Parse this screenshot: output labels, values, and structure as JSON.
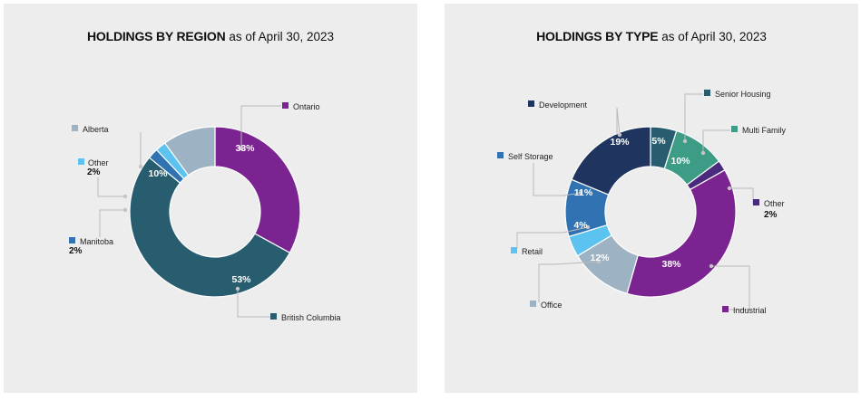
{
  "colors": {
    "navy": "#1f3560",
    "dark_teal": "#275d6e",
    "teal_green": "#3c9c86",
    "purple": "#7b2390",
    "dark_purple": "#4a2a7e",
    "medium_blue": "#3173b2",
    "light_blue": "#5cc2ef",
    "gray_blue": "#9db2c2",
    "panel_bg": "#eeeded"
  },
  "chart_data": [
    {
      "type": "pie",
      "variant": "donut",
      "title": "HOLDINGS BY REGION",
      "subtitle": "as of April 30, 2023",
      "start_at": "top, clockwise",
      "slices": [
        {
          "label": "Ontario",
          "value": 33,
          "pct_label": "33%",
          "color": "#7b2390",
          "label_in_slice": true
        },
        {
          "label": "British Columbia",
          "value": 53,
          "pct_label": "53%",
          "color": "#275d6e",
          "label_in_slice": true
        },
        {
          "label": "Manitoba",
          "value": 2,
          "pct_label": "2%",
          "color": "#3173b2",
          "label_in_slice": false
        },
        {
          "label": "Other",
          "value": 2,
          "pct_label": "2%",
          "color": "#5cc2ef",
          "label_in_slice": false
        },
        {
          "label": "Alberta",
          "value": 10,
          "pct_label": "10%",
          "color": "#9db2c2",
          "label_in_slice": true
        }
      ]
    },
    {
      "type": "pie",
      "variant": "donut",
      "title": "HOLDINGS BY TYPE",
      "subtitle": "as of April 30, 2023",
      "start_at": "top, clockwise",
      "slices": [
        {
          "label": "Senior Housing",
          "value": 5,
          "pct_label": "5%",
          "color": "#275d6e",
          "label_in_slice": true
        },
        {
          "label": "Multi Family",
          "value": 10,
          "pct_label": "10%",
          "color": "#3c9c86",
          "label_in_slice": true
        },
        {
          "label": "Other",
          "value": 2,
          "pct_label": "2%",
          "color": "#4a2a7e",
          "label_in_slice": false
        },
        {
          "label": "Industrial",
          "value": 38,
          "pct_label": "38%",
          "color": "#7b2390",
          "label_in_slice": true
        },
        {
          "label": "Office",
          "value": 12,
          "pct_label": "12%",
          "color": "#9db2c2",
          "label_in_slice": true
        },
        {
          "label": "Retail",
          "value": 4,
          "pct_label": "4%",
          "color": "#5cc2ef",
          "label_in_slice": true
        },
        {
          "label": "Self Storage",
          "value": 11,
          "pct_label": "11%",
          "color": "#3173b2",
          "label_in_slice": true
        },
        {
          "label": "Development",
          "value": 19,
          "pct_label": "19%",
          "color": "#1f3560",
          "label_in_slice": true
        }
      ]
    }
  ]
}
